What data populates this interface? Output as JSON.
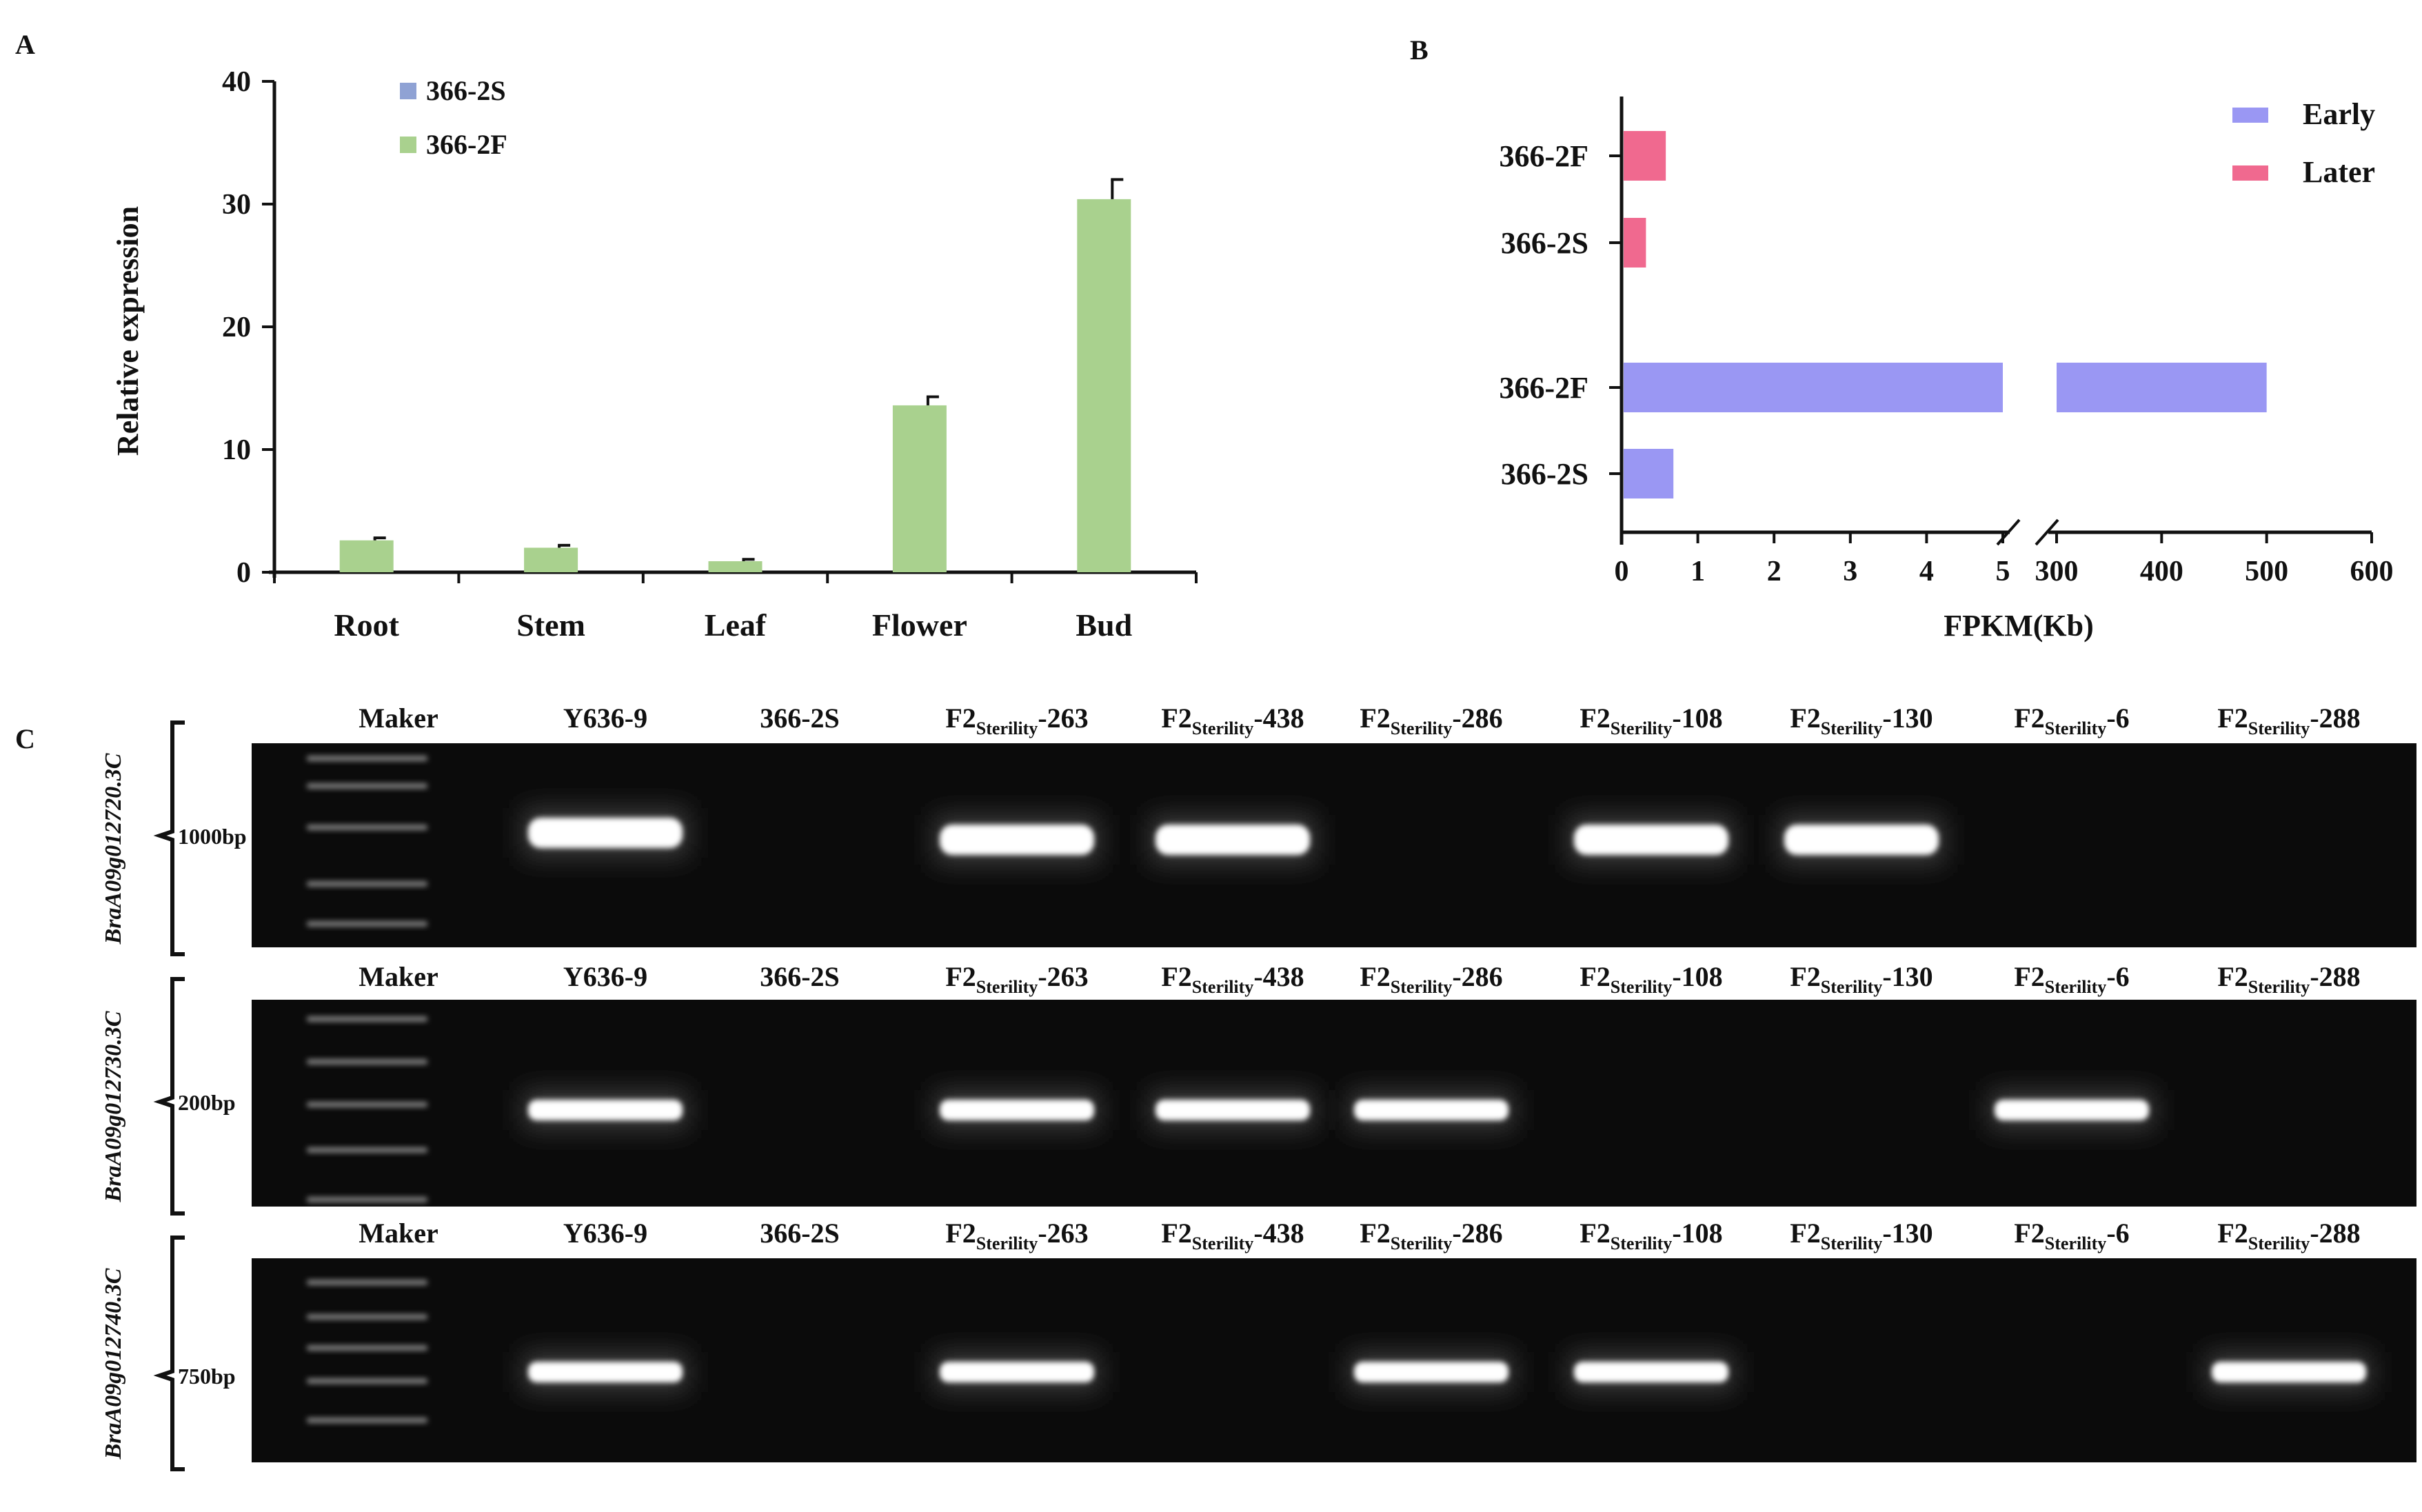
{
  "panel_labels": {
    "a": "A",
    "b": "B",
    "c": "C"
  },
  "chart_data": [
    {
      "type": "bar",
      "panel": "A",
      "categories": [
        "Root",
        "Stem",
        "Leaf",
        "Flower",
        "Bud"
      ],
      "series": [
        {
          "name": "366-2S",
          "color": "#8fa2d4",
          "values": [
            0,
            0,
            0,
            0,
            0
          ],
          "errors": [
            0,
            0,
            0,
            0,
            0
          ]
        },
        {
          "name": "366-2F",
          "color": "#a9d18e",
          "values": [
            2.6,
            2.0,
            0.9,
            13.6,
            30.4
          ],
          "errors": [
            0.2,
            0.2,
            0.15,
            0.7,
            1.6
          ]
        }
      ],
      "ylabel": "Relative expression",
      "ylim": [
        0,
        40
      ],
      "yticks": [
        "0",
        "10",
        "20",
        "30",
        "40"
      ],
      "grid": false,
      "legend": "top-left"
    },
    {
      "type": "bar",
      "orientation": "horizontal",
      "panel": "B",
      "xlabel": "FPKM(Kb)",
      "xticks_left": [
        "0",
        "1",
        "2",
        "3",
        "4",
        "5"
      ],
      "xticks_right": [
        "300",
        "400",
        "500",
        "600"
      ],
      "axis_break": [
        5,
        300
      ],
      "categories": [
        "366-2F",
        "366-2S",
        "366-2F",
        "366-2S"
      ],
      "series": [
        {
          "name": "Early",
          "color": "#9a97f3",
          "values": [
            null,
            null,
            500,
            0.68
          ]
        },
        {
          "name": "Later",
          "color": "#f0698f",
          "values": [
            0.58,
            0.32,
            null,
            null
          ]
        }
      ],
      "legend": "top-right"
    }
  ],
  "gels": [
    {
      "gene": "BraA09g012720.3C",
      "marker_label": "1000bp",
      "lanes": [
        {
          "main": "Maker",
          "sub": "",
          "suffix": "",
          "band": false
        },
        {
          "main": "Y636-9",
          "sub": "",
          "suffix": "",
          "band": true
        },
        {
          "main": "366-2S",
          "sub": "",
          "suffix": "",
          "band": false
        },
        {
          "main": "F2",
          "sub": "Sterility",
          "suffix": "-263",
          "band": true
        },
        {
          "main": "F2",
          "sub": "Sterility",
          "suffix": "-438",
          "band": true
        },
        {
          "main": "F2",
          "sub": "Sterility",
          "suffix": "-286",
          "band": false
        },
        {
          "main": "F2",
          "sub": "Sterility",
          "suffix": "-108",
          "band": true
        },
        {
          "main": "F2",
          "sub": "Sterility",
          "suffix": "-130",
          "band": true
        },
        {
          "main": "F2",
          "sub": "Sterility",
          "suffix": "-6",
          "band": false
        },
        {
          "main": "F2",
          "sub": "Sterility",
          "suffix": "-288",
          "band": false
        }
      ]
    },
    {
      "gene": "BraA09g012730.3C",
      "marker_label": "200bp",
      "lanes": [
        {
          "main": "Maker",
          "sub": "",
          "suffix": "",
          "band": false
        },
        {
          "main": "Y636-9",
          "sub": "",
          "suffix": "",
          "band": true
        },
        {
          "main": "366-2S",
          "sub": "",
          "suffix": "",
          "band": false
        },
        {
          "main": "F2",
          "sub": "Sterility",
          "suffix": "-263",
          "band": true
        },
        {
          "main": "F2",
          "sub": "Sterility",
          "suffix": "-438",
          "band": true
        },
        {
          "main": "F2",
          "sub": "Sterility",
          "suffix": "-286",
          "band": true
        },
        {
          "main": "F2",
          "sub": "Sterility",
          "suffix": "-108",
          "band": false
        },
        {
          "main": "F2",
          "sub": "Sterility",
          "suffix": "-130",
          "band": false
        },
        {
          "main": "F2",
          "sub": "Sterility",
          "suffix": "-6",
          "band": true
        },
        {
          "main": "F2",
          "sub": "Sterility",
          "suffix": "-288",
          "band": false
        }
      ]
    },
    {
      "gene": "BraA09g012740.3C",
      "marker_label": "750bp",
      "lanes": [
        {
          "main": "Maker",
          "sub": "",
          "suffix": "",
          "band": false
        },
        {
          "main": "Y636-9",
          "sub": "",
          "suffix": "",
          "band": true
        },
        {
          "main": "366-2S",
          "sub": "",
          "suffix": "",
          "band": false
        },
        {
          "main": "F2",
          "sub": "Sterility",
          "suffix": "-263",
          "band": true
        },
        {
          "main": "F2",
          "sub": "Sterility",
          "suffix": "-438",
          "band": false
        },
        {
          "main": "F2",
          "sub": "Sterility",
          "suffix": "-286",
          "band": true
        },
        {
          "main": "F2",
          "sub": "Sterility",
          "suffix": "-108",
          "band": true
        },
        {
          "main": "F2",
          "sub": "Sterility",
          "suffix": "-130",
          "band": false
        },
        {
          "main": "F2",
          "sub": "Sterility",
          "suffix": "-6",
          "band": false
        },
        {
          "main": "F2",
          "sub": "Sterility",
          "suffix": "-288",
          "band": true
        }
      ]
    }
  ]
}
